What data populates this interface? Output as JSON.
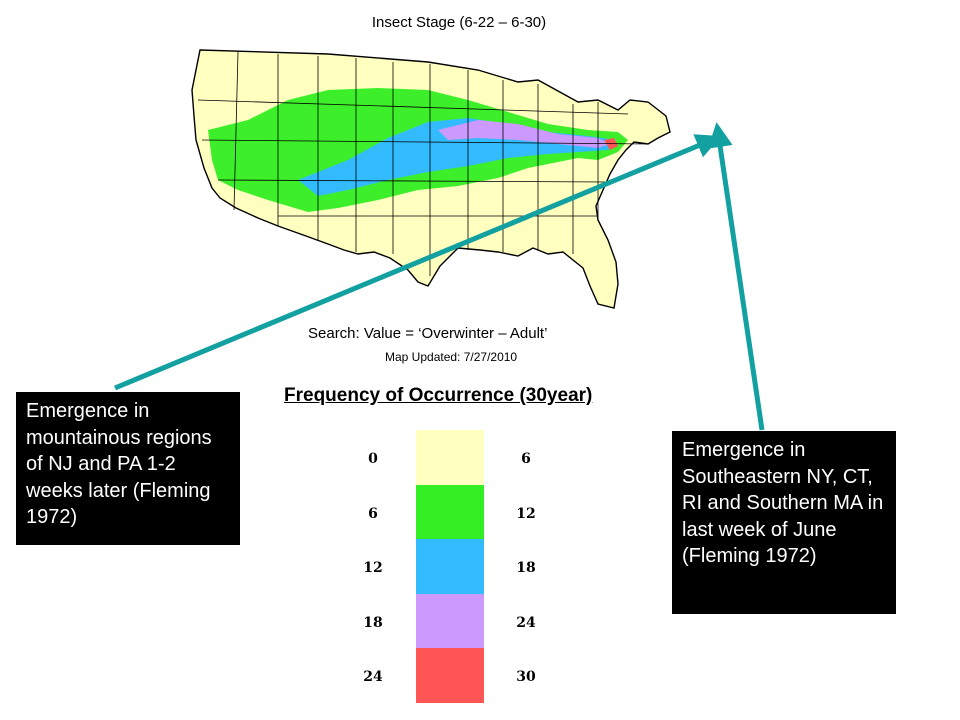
{
  "map": {
    "title": "Insect Stage (6-22 – 6-30)",
    "search": "Search: Value = ‘Overwinter – Adult’",
    "updated": "Map Updated: 7/27/2010"
  },
  "legend": {
    "title": "Frequency of Occurrence (30year)",
    "items": [
      {
        "low": "0",
        "high": "6",
        "color": "#FFFFC0"
      },
      {
        "low": "6",
        "high": "12",
        "color": "#33EE22"
      },
      {
        "low": "12",
        "high": "18",
        "color": "#33BBFF"
      },
      {
        "low": "18",
        "high": "24",
        "color": "#CC99FF"
      },
      {
        "low": "24",
        "high": "30",
        "color": "#FF5555"
      }
    ]
  },
  "callouts": {
    "left": "Emergence in mountainous regions of NJ and PA 1-2 weeks later (Fleming 1972)",
    "right": "Emergence in Southeastern NY, CT, RI and Southern MA in last week of June (Fleming 1972)"
  },
  "colors": {
    "arrow": "#12A0A0",
    "callout_bg": "#000000",
    "callout_text": "#FFFFFF",
    "state_border": "#000000"
  }
}
